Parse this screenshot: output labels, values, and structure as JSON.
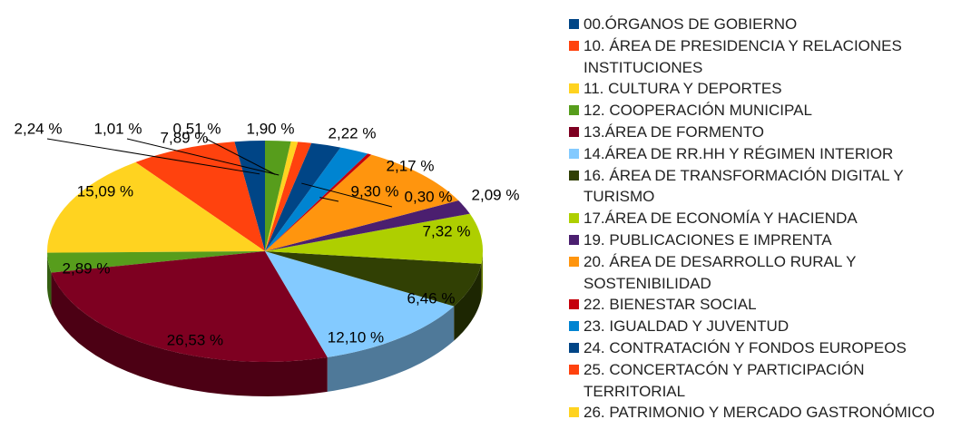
{
  "chart_data": {
    "type": "pie3d",
    "categories": [
      "00.ÓRGANOS DE GOBIERNO",
      "10. ÁREA DE PRESIDENCIA Y RELACIONES INSTITUCIONES",
      "11. CULTURA Y DEPORTES",
      "12. COOPERACIÓN MUNICIPAL",
      "13.ÁREA DE FORMENTO",
      "14.ÁREA DE RR.HH Y RÉGIMEN INTERIOR",
      "16. ÁREA DE TRANSFORMACIÓN DIGITAL Y TURISMO",
      "17.ÁREA DE ECONOMÍA Y HACIENDA",
      "19. PUBLICACIONES E IMPRENTA",
      "20. ÁREA DE DESARROLLO RURAL Y SOSTENIBILIDAD",
      "22. BIENESTAR SOCIAL",
      "23. IGUALDAD Y JUVENTUD",
      "24. CONTRATACIÓN Y FONDOS EUROPEOS",
      "25. CONCERTACÓN Y PARTICIPACIÓN TERRITORIAL",
      "26. PATRIMONIO Y MERCADO GASTRONÓMICO",
      null
    ],
    "values": [
      2.24,
      7.89,
      15.09,
      2.89,
      26.53,
      12.1,
      6.46,
      7.32,
      2.09,
      9.3,
      0.3,
      2.17,
      2.22,
      1.01,
      0.51,
      1.9
    ],
    "value_labels": [
      "2,24 %",
      "7,89 %",
      "15,09 %",
      "2,89 %",
      "26,53 %",
      "12,10 %",
      "6,46 %",
      "7,32 %",
      "2,09 %",
      "9,30 %",
      "0,30 %",
      "2,17 %",
      "2,22 %",
      "1,01 %",
      "0,51 %",
      "1,90 %"
    ],
    "colors": [
      "#004586",
      "#ff420e",
      "#ffd320",
      "#579d1c",
      "#7e0021",
      "#83caff",
      "#314004",
      "#aecf00",
      "#4b1f6f",
      "#ff950e",
      "#c5000b",
      "#0084d1",
      "#004586",
      "#ff420e",
      "#ffd320",
      "#579d1c"
    ],
    "legend": "right"
  }
}
